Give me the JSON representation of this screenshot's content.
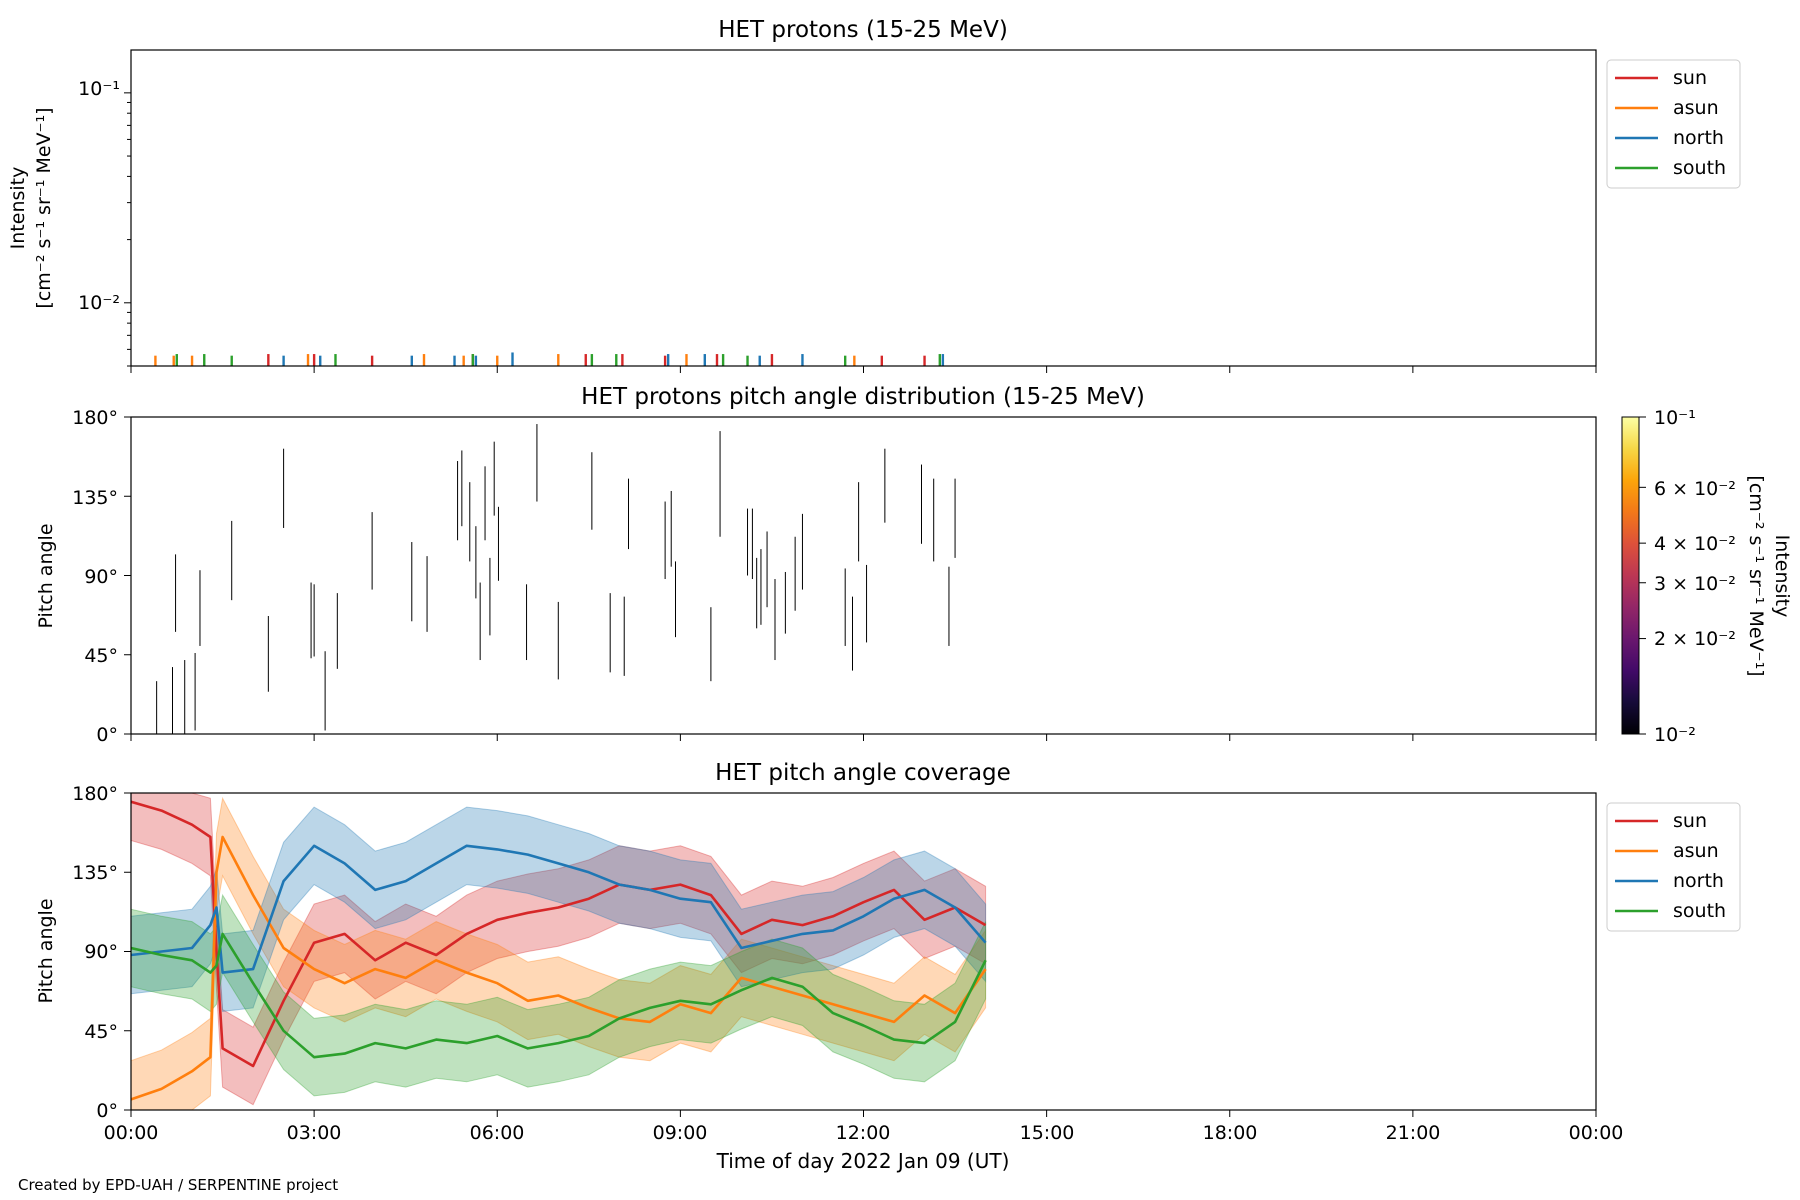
{
  "figure": {
    "credit": "Created by EPD-UAH / SERPENTINE project",
    "xlabel": "Time of day 2022 Jan 09 (UT)",
    "x_ticks": [
      "00:00",
      "03:00",
      "06:00",
      "09:00",
      "12:00",
      "15:00",
      "18:00",
      "21:00",
      "00:00"
    ]
  },
  "panel1": {
    "title": "HET protons (15-25 MeV)",
    "ylabel_line1": "Intensity",
    "ylabel_line2": "[cm⁻² s⁻¹ sr⁻¹ MeV⁻¹]",
    "y_tick_hi": "10⁻¹",
    "y_tick_lo": "10⁻²",
    "legend": [
      {
        "name": "sun",
        "color": "#d62728"
      },
      {
        "name": "asun",
        "color": "#ff7f0e"
      },
      {
        "name": "north",
        "color": "#1f77b4"
      },
      {
        "name": "south",
        "color": "#2ca02c"
      }
    ]
  },
  "panel2": {
    "title": "HET protons pitch angle distribution (15-25 MeV)",
    "ylabel": "Pitch angle",
    "y_ticks": [
      "0°",
      "45°",
      "90°",
      "135°",
      "180°"
    ],
    "colorbar": {
      "label_line1": "Intensity",
      "label_line2": "[cm⁻² s⁻¹ sr⁻¹ MeV⁻¹]",
      "ticks": [
        "10⁻¹",
        "6 × 10⁻²",
        "4 × 10⁻²",
        "3 × 10⁻²",
        "2 × 10⁻²",
        "10⁻²"
      ],
      "colormap": "inferno",
      "range": [
        0.01,
        0.1
      ]
    }
  },
  "panel3": {
    "title": "HET pitch angle coverage",
    "ylabel": "Pitch angle",
    "y_ticks": [
      "0°",
      "45°",
      "90°",
      "135°",
      "180°"
    ],
    "legend": [
      {
        "name": "sun",
        "color": "#d62728"
      },
      {
        "name": "asun",
        "color": "#ff7f0e"
      },
      {
        "name": "north",
        "color": "#1f77b4"
      },
      {
        "name": "south",
        "color": "#2ca02c"
      }
    ]
  },
  "chart_data": [
    {
      "type": "scatter",
      "title": "HET protons (15-25 MeV)",
      "xlabel": "",
      "ylabel": "Intensity [cm⁻² s⁻¹ sr⁻¹ MeV⁻¹]",
      "yscale": "log",
      "xlim": [
        0,
        24
      ],
      "ylim": [
        0.005,
        0.16
      ],
      "legend_loc": "outside-right",
      "series": [
        {
          "name": "sun",
          "color": "#d62728",
          "x": [
            2.25,
            3.0,
            3.95,
            5.6,
            7.45,
            8.05,
            8.75,
            9.6,
            10.5,
            12.3,
            13.0
          ],
          "y": [
            0.0057,
            0.0057,
            0.0056,
            0.0057,
            0.0057,
            0.0057,
            0.0056,
            0.0057,
            0.0057,
            0.0056,
            0.0056
          ]
        },
        {
          "name": "asun",
          "color": "#ff7f0e",
          "x": [
            0.4,
            0.7,
            1.0,
            2.9,
            4.8,
            5.45,
            6.0,
            7.0,
            9.1,
            11.85
          ],
          "y": [
            0.0056,
            0.0056,
            0.0056,
            0.0057,
            0.0057,
            0.0056,
            0.0056,
            0.0057,
            0.0057,
            0.0056
          ]
        },
        {
          "name": "north",
          "color": "#1f77b4",
          "x": [
            2.5,
            3.1,
            4.6,
            5.3,
            5.65,
            6.25,
            8.8,
            9.4,
            10.3,
            11.0,
            13.3
          ],
          "y": [
            0.0056,
            0.0056,
            0.0056,
            0.0056,
            0.0056,
            0.0058,
            0.0057,
            0.0057,
            0.0056,
            0.0057,
            0.0057
          ]
        },
        {
          "name": "south",
          "color": "#2ca02c",
          "x": [
            0.75,
            1.2,
            1.65,
            3.35,
            5.6,
            7.55,
            7.95,
            9.7,
            10.1,
            11.7,
            13.25
          ],
          "y": [
            0.0057,
            0.0057,
            0.0056,
            0.0057,
            0.0057,
            0.0057,
            0.0057,
            0.0057,
            0.0056,
            0.0056,
            0.0057
          ]
        }
      ]
    },
    {
      "type": "heatmap",
      "title": "HET protons pitch angle distribution (15-25 MeV)",
      "xlabel": "",
      "ylabel": "Pitch angle",
      "xlim": [
        0,
        24
      ],
      "ylim": [
        0,
        180
      ],
      "colorbar": {
        "label": "Intensity [cm⁻² s⁻¹ sr⁻¹ MeV⁻¹]",
        "scale": "log",
        "range": [
          0.01,
          0.1
        ],
        "colormap": "inferno"
      },
      "segments": [
        {
          "t": 0.42,
          "pa": [
            0,
            30
          ]
        },
        {
          "t": 0.68,
          "pa": [
            0,
            38
          ]
        },
        {
          "t": 0.73,
          "pa": [
            58,
            102
          ]
        },
        {
          "t": 0.88,
          "pa": [
            0,
            42
          ]
        },
        {
          "t": 1.05,
          "pa": [
            2,
            46
          ]
        },
        {
          "t": 1.13,
          "pa": [
            50,
            93
          ]
        },
        {
          "t": 1.65,
          "pa": [
            76,
            121
          ]
        },
        {
          "t": 2.25,
          "pa": [
            24,
            67
          ]
        },
        {
          "t": 2.5,
          "pa": [
            117,
            162
          ]
        },
        {
          "t": 2.95,
          "pa": [
            43,
            86
          ]
        },
        {
          "t": 3.0,
          "pa": [
            44,
            85
          ]
        },
        {
          "t": 3.18,
          "pa": [
            2,
            47
          ]
        },
        {
          "t": 3.38,
          "pa": [
            37,
            80
          ]
        },
        {
          "t": 3.95,
          "pa": [
            82,
            126
          ]
        },
        {
          "t": 4.6,
          "pa": [
            64,
            109
          ]
        },
        {
          "t": 4.85,
          "pa": [
            58,
            101
          ]
        },
        {
          "t": 5.35,
          "pa": [
            110,
            155
          ]
        },
        {
          "t": 5.42,
          "pa": [
            118,
            161
          ]
        },
        {
          "t": 5.55,
          "pa": [
            98,
            143
          ]
        },
        {
          "t": 5.65,
          "pa": [
            77,
            118
          ]
        },
        {
          "t": 5.72,
          "pa": [
            42,
            86
          ]
        },
        {
          "t": 5.8,
          "pa": [
            110,
            152
          ]
        },
        {
          "t": 5.88,
          "pa": [
            56,
            100
          ]
        },
        {
          "t": 5.95,
          "pa": [
            124,
            166
          ]
        },
        {
          "t": 6.02,
          "pa": [
            87,
            129
          ]
        },
        {
          "t": 6.48,
          "pa": [
            42,
            85
          ]
        },
        {
          "t": 6.65,
          "pa": [
            132,
            176
          ]
        },
        {
          "t": 7.0,
          "pa": [
            31,
            75
          ]
        },
        {
          "t": 7.55,
          "pa": [
            116,
            160
          ]
        },
        {
          "t": 7.85,
          "pa": [
            35,
            80
          ]
        },
        {
          "t": 8.08,
          "pa": [
            33,
            78
          ]
        },
        {
          "t": 8.15,
          "pa": [
            105,
            145
          ]
        },
        {
          "t": 8.75,
          "pa": [
            88,
            132
          ]
        },
        {
          "t": 8.85,
          "pa": [
            95,
            138
          ]
        },
        {
          "t": 8.92,
          "pa": [
            55,
            98
          ]
        },
        {
          "t": 9.5,
          "pa": [
            30,
            72
          ]
        },
        {
          "t": 9.65,
          "pa": [
            112,
            172
          ]
        },
        {
          "t": 10.1,
          "pa": [
            90,
            128
          ]
        },
        {
          "t": 10.18,
          "pa": [
            88,
            128
          ]
        },
        {
          "t": 10.25,
          "pa": [
            60,
            100
          ]
        },
        {
          "t": 10.32,
          "pa": [
            62,
            105
          ]
        },
        {
          "t": 10.42,
          "pa": [
            72,
            115
          ]
        },
        {
          "t": 10.55,
          "pa": [
            42,
            88
          ]
        },
        {
          "t": 10.72,
          "pa": [
            57,
            92
          ]
        },
        {
          "t": 10.88,
          "pa": [
            70,
            112
          ]
        },
        {
          "t": 11.0,
          "pa": [
            82,
            125
          ]
        },
        {
          "t": 11.7,
          "pa": [
            50,
            94
          ]
        },
        {
          "t": 11.82,
          "pa": [
            36,
            78
          ]
        },
        {
          "t": 11.92,
          "pa": [
            98,
            143
          ]
        },
        {
          "t": 12.05,
          "pa": [
            52,
            96
          ]
        },
        {
          "t": 12.35,
          "pa": [
            120,
            162
          ]
        },
        {
          "t": 12.95,
          "pa": [
            108,
            153
          ]
        },
        {
          "t": 13.15,
          "pa": [
            98,
            145
          ]
        },
        {
          "t": 13.4,
          "pa": [
            50,
            95
          ]
        },
        {
          "t": 13.5,
          "pa": [
            100,
            145
          ]
        }
      ]
    },
    {
      "type": "line",
      "title": "HET pitch angle coverage",
      "xlabel": "Time of day 2022 Jan 09 (UT)",
      "ylabel": "Pitch angle",
      "xlim": [
        0,
        24
      ],
      "ylim": [
        0,
        180
      ],
      "legend_loc": "outside-right",
      "shaded_band_halfwidth_deg": 22,
      "x": [
        0,
        0.5,
        1.0,
        1.3,
        1.4,
        1.5,
        2.0,
        2.5,
        3.0,
        3.5,
        4.0,
        4.5,
        5.0,
        5.5,
        6.0,
        6.5,
        7.0,
        7.5,
        8.0,
        8.5,
        9.0,
        9.5,
        10.0,
        10.5,
        11.0,
        11.5,
        12.0,
        12.5,
        13.0,
        13.5,
        14.0
      ],
      "series": [
        {
          "name": "sun",
          "color": "#d62728",
          "values": [
            175,
            170,
            162,
            155,
            90,
            35,
            25,
            62,
            95,
            100,
            85,
            95,
            88,
            100,
            108,
            112,
            115,
            120,
            128,
            125,
            128,
            122,
            100,
            108,
            105,
            110,
            118,
            125,
            108,
            115,
            105
          ]
        },
        {
          "name": "asun",
          "color": "#ff7f0e",
          "values": [
            6,
            12,
            22,
            30,
            135,
            155,
            122,
            92,
            80,
            72,
            80,
            75,
            85,
            78,
            72,
            62,
            65,
            58,
            52,
            50,
            60,
            55,
            75,
            70,
            65,
            60,
            55,
            50,
            65,
            55,
            80
          ]
        },
        {
          "name": "north",
          "color": "#1f77b4",
          "values": [
            88,
            90,
            92,
            105,
            115,
            78,
            80,
            130,
            150,
            140,
            125,
            130,
            140,
            150,
            148,
            145,
            140,
            135,
            128,
            125,
            120,
            118,
            92,
            96,
            100,
            102,
            110,
            120,
            125,
            115,
            95
          ]
        },
        {
          "name": "south",
          "color": "#2ca02c",
          "values": [
            92,
            88,
            85,
            78,
            82,
            100,
            72,
            45,
            30,
            32,
            38,
            35,
            40,
            38,
            42,
            35,
            38,
            42,
            52,
            58,
            62,
            60,
            68,
            75,
            70,
            55,
            48,
            40,
            38,
            50,
            85
          ]
        }
      ]
    }
  ]
}
